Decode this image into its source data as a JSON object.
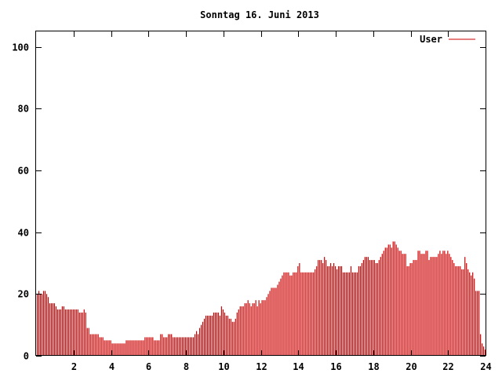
{
  "chart_data": {
    "type": "bar",
    "title": "Sonntag 16. Juni 2013",
    "xlabel": "",
    "ylabel": "",
    "xlim": [
      0,
      24
    ],
    "ylim": [
      0,
      105
    ],
    "x_ticks": [
      "2",
      "4",
      "6",
      "8",
      "10",
      "12",
      "14",
      "16",
      "18",
      "20",
      "22",
      "24"
    ],
    "y_ticks": [
      "0",
      "20",
      "40",
      "60",
      "80",
      "100"
    ],
    "grid": false,
    "legend_position": "top-right",
    "bar_width_hours": 0.05,
    "series": [
      {
        "name": "User",
        "color": "#cc0000",
        "x_start": 0.0,
        "x_step": 0.0833333,
        "values": [
          20,
          21,
          20,
          20,
          21,
          21,
          20,
          19,
          17,
          17,
          17,
          17,
          16,
          15,
          15,
          15,
          16,
          16,
          15,
          15,
          15,
          15,
          15,
          15,
          15,
          15,
          15,
          14,
          14,
          14,
          15,
          14,
          9,
          9,
          7,
          7,
          7,
          7,
          7,
          7,
          6,
          6,
          6,
          5,
          5,
          5,
          5,
          5,
          4,
          4,
          4,
          4,
          4,
          4,
          4,
          4,
          4,
          5,
          5,
          5,
          5,
          5,
          5,
          5,
          5,
          5,
          5,
          5,
          5,
          6,
          6,
          6,
          6,
          6,
          6,
          5,
          5,
          5,
          5,
          7,
          7,
          6,
          6,
          6,
          7,
          7,
          7,
          6,
          6,
          6,
          6,
          6,
          6,
          6,
          6,
          6,
          6,
          6,
          6,
          6,
          6,
          7,
          8,
          7,
          9,
          10,
          11,
          12,
          13,
          13,
          13,
          13,
          13,
          14,
          14,
          14,
          14,
          13,
          16,
          15,
          14,
          13,
          13,
          12,
          12,
          11,
          11,
          12,
          14,
          15,
          16,
          16,
          16,
          17,
          17,
          18,
          17,
          16,
          17,
          17,
          18,
          16,
          18,
          17,
          18,
          18,
          18,
          19,
          20,
          21,
          22,
          22,
          22,
          22,
          23,
          24,
          25,
          26,
          27,
          27,
          27,
          27,
          26,
          26,
          27,
          27,
          27,
          29,
          30,
          27,
          27,
          27,
          27,
          27,
          27,
          27,
          27,
          27,
          28,
          29,
          31,
          31,
          31,
          30,
          32,
          31,
          29,
          29,
          30,
          29,
          30,
          29,
          28,
          29,
          29,
          29,
          27,
          27,
          27,
          27,
          27,
          29,
          27,
          27,
          27,
          27,
          29,
          29,
          30,
          31,
          32,
          32,
          32,
          31,
          31,
          31,
          31,
          30,
          30,
          31,
          32,
          33,
          34,
          35,
          35,
          36,
          36,
          35,
          37,
          37,
          36,
          35,
          34,
          34,
          33,
          33,
          33,
          29,
          29,
          30,
          30,
          31,
          31,
          31,
          34,
          34,
          33,
          33,
          33,
          34,
          34,
          31,
          32,
          32,
          32,
          32,
          32,
          33,
          34,
          33,
          34,
          34,
          33,
          34,
          33,
          32,
          31,
          30,
          29,
          29,
          29,
          29,
          28,
          28,
          32,
          30,
          28,
          27,
          26,
          27,
          25,
          21,
          21,
          21,
          7,
          4,
          3,
          2
        ]
      }
    ]
  }
}
